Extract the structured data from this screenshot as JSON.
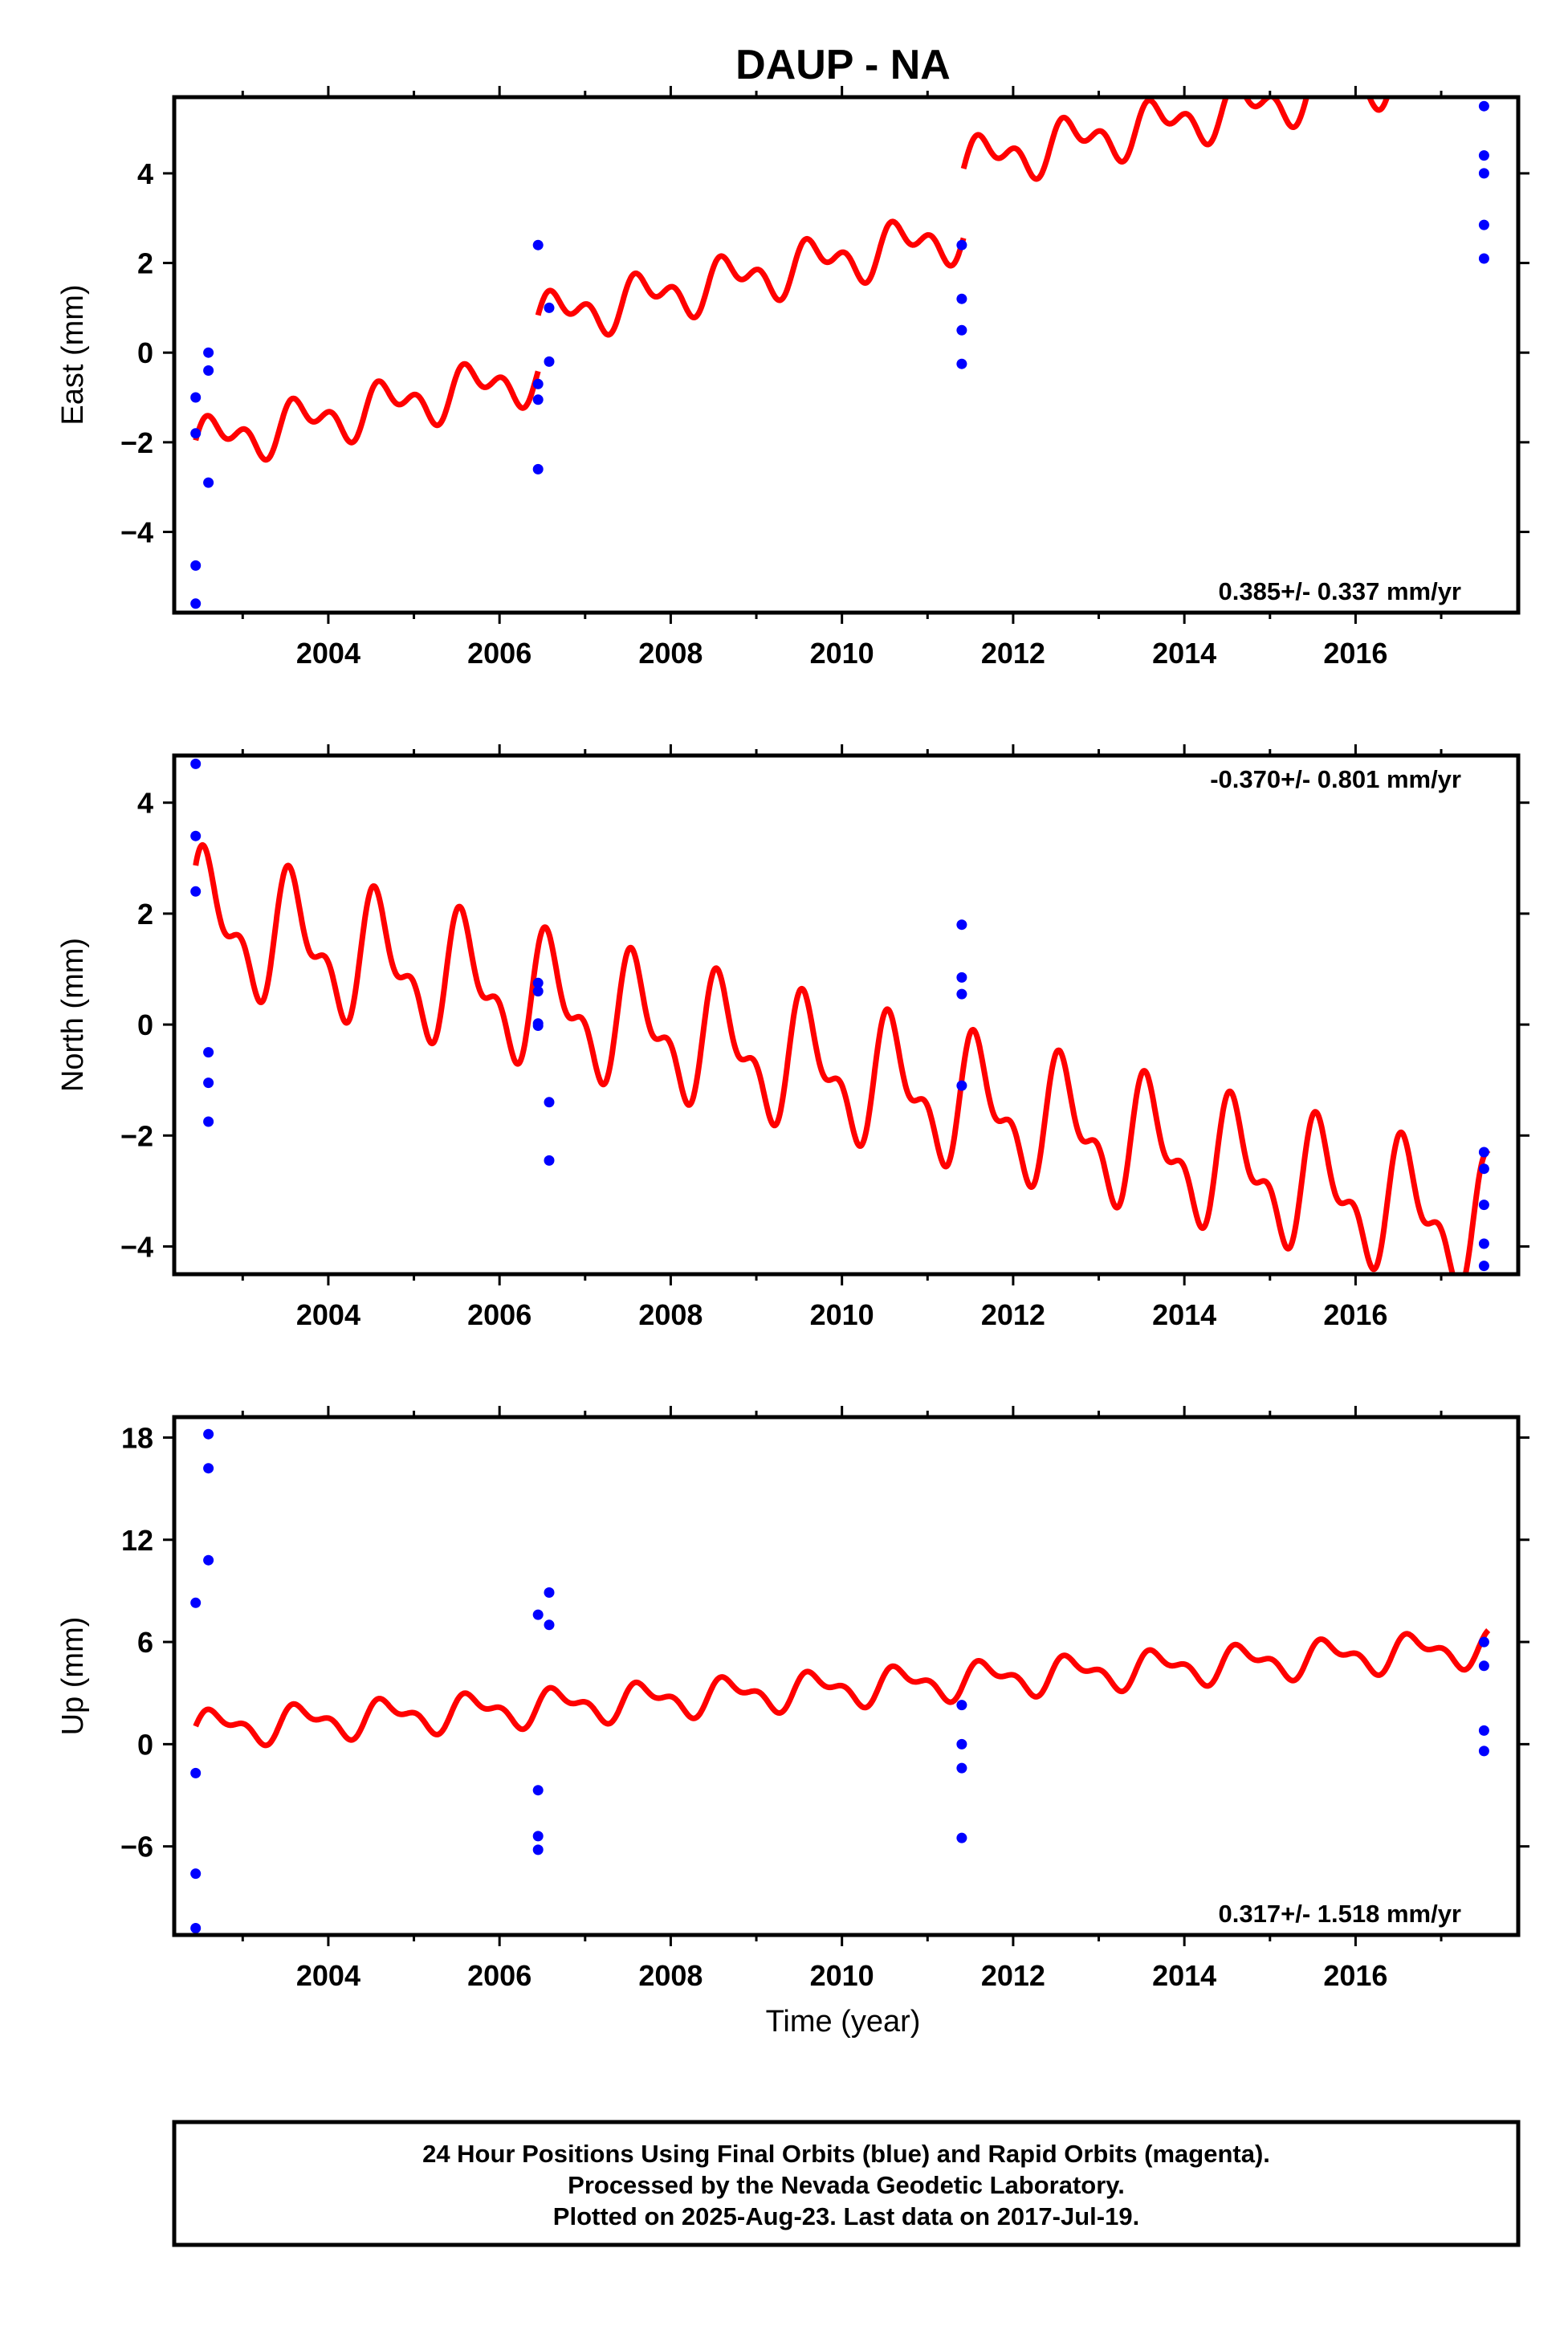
{
  "title": "DAUP - NA",
  "colors": {
    "fit": "#ff0000",
    "points": "#0000ff",
    "frame": "#000000"
  },
  "chart_data": [
    {
      "type": "scatter",
      "component": "east",
      "ylabel": "East (mm)",
      "xlim": [
        2002.2,
        2017.9
      ],
      "ylim": [
        -5.8,
        5.7
      ],
      "yticks": [
        -4,
        -2,
        0,
        2,
        4
      ],
      "xticks": [
        2004,
        2006,
        2008,
        2010,
        2012,
        2014,
        2016
      ],
      "grid": false,
      "rate_text": "0.385+/- 0.337 mm/yr",
      "rate_position": "bottom-right",
      "points": [
        [
          2002.45,
          -1.0
        ],
        [
          2002.45,
          -1.8
        ],
        [
          2002.45,
          -4.75
        ],
        [
          2002.45,
          -5.6
        ],
        [
          2002.6,
          0.0
        ],
        [
          2002.6,
          -0.4
        ],
        [
          2002.6,
          -2.9
        ],
        [
          2006.45,
          2.4
        ],
        [
          2006.45,
          -0.7
        ],
        [
          2006.45,
          -1.05
        ],
        [
          2006.45,
          -2.6
        ],
        [
          2006.58,
          1.0
        ],
        [
          2006.58,
          -0.2
        ],
        [
          2011.4,
          2.4
        ],
        [
          2011.4,
          1.2
        ],
        [
          2011.4,
          0.5
        ],
        [
          2011.4,
          -0.25
        ],
        [
          2017.5,
          5.5
        ],
        [
          2017.5,
          4.4
        ],
        [
          2017.5,
          4.0
        ],
        [
          2017.5,
          2.85
        ],
        [
          2017.5,
          2.1
        ]
      ],
      "fit_segments": [
        {
          "start": 2002.45,
          "end": 2006.45,
          "offset": -2.05
        },
        {
          "start": 2006.45,
          "end": 2011.42,
          "offset": -0.8
        },
        {
          "start": 2011.42,
          "end": 2017.55,
          "offset": 0.75
        }
      ],
      "fit_model": {
        "t0": 2002.45,
        "rate": 0.385,
        "annual_amp": 0.4,
        "annual_phase": 0.0,
        "semiannual_amp": 0.32,
        "semiannual_phase": 0.3
      }
    },
    {
      "type": "scatter",
      "component": "north",
      "ylabel": "North (mm)",
      "xlim": [
        2002.2,
        2017.9
      ],
      "ylim": [
        -4.5,
        4.85
      ],
      "yticks": [
        -4,
        -2,
        0,
        2,
        4
      ],
      "xticks": [
        2004,
        2006,
        2008,
        2010,
        2012,
        2014,
        2016
      ],
      "grid": false,
      "rate_text": "-0.370+/- 0.801 mm/yr",
      "rate_position": "top-right",
      "points": [
        [
          2002.45,
          4.7
        ],
        [
          2002.45,
          3.4
        ],
        [
          2002.45,
          2.4
        ],
        [
          2002.6,
          -0.5
        ],
        [
          2002.6,
          -1.05
        ],
        [
          2002.6,
          -1.75
        ],
        [
          2006.45,
          0.75
        ],
        [
          2006.45,
          0.6
        ],
        [
          2006.45,
          0.02
        ],
        [
          2006.45,
          -0.02
        ],
        [
          2006.58,
          -1.4
        ],
        [
          2006.58,
          -2.45
        ],
        [
          2011.4,
          1.8
        ],
        [
          2011.4,
          0.85
        ],
        [
          2011.4,
          0.55
        ],
        [
          2011.4,
          -1.1
        ],
        [
          2017.5,
          -2.3
        ],
        [
          2017.5,
          -2.6
        ],
        [
          2017.5,
          -3.25
        ],
        [
          2017.5,
          -3.95
        ],
        [
          2017.5,
          -4.35
        ]
      ],
      "fit_segments": [
        {
          "start": 2002.45,
          "end": 2017.55,
          "offset": 1.9
        }
      ],
      "fit_model": {
        "t0": 2002.45,
        "rate": -0.37,
        "annual_amp": 0.95,
        "annual_phase": 0.6,
        "semiannual_amp": 0.55,
        "semiannual_phase": 0.9
      }
    },
    {
      "type": "scatter",
      "component": "up",
      "ylabel": "Up (mm)",
      "xlim": [
        2002.2,
        2017.9
      ],
      "ylim": [
        -11.2,
        19.2
      ],
      "yticks": [
        -6,
        0,
        6,
        12,
        18
      ],
      "xticks": [
        2004,
        2006,
        2008,
        2010,
        2012,
        2014,
        2016
      ],
      "grid": false,
      "rate_text": "0.317+/- 1.518 mm/yr",
      "rate_position": "bottom-right",
      "points": [
        [
          2002.45,
          8.3
        ],
        [
          2002.45,
          -1.7
        ],
        [
          2002.45,
          -7.6
        ],
        [
          2002.45,
          -10.8
        ],
        [
          2002.6,
          18.2
        ],
        [
          2002.6,
          16.2
        ],
        [
          2002.6,
          10.8
        ],
        [
          2006.45,
          7.6
        ],
        [
          2006.45,
          -2.7
        ],
        [
          2006.45,
          -5.4
        ],
        [
          2006.45,
          -6.2
        ],
        [
          2006.58,
          8.9
        ],
        [
          2006.58,
          7.0
        ],
        [
          2011.4,
          2.3
        ],
        [
          2011.4,
          0.0
        ],
        [
          2011.4,
          -1.4
        ],
        [
          2011.4,
          -5.5
        ],
        [
          2017.5,
          6.0
        ],
        [
          2017.5,
          4.6
        ],
        [
          2017.5,
          0.8
        ],
        [
          2017.5,
          -0.4
        ]
      ],
      "fit_segments": [
        {
          "start": 2002.45,
          "end": 2017.55,
          "offset": 0.9
        }
      ],
      "fit_model": {
        "t0": 2002.45,
        "rate": 0.317,
        "annual_amp": 0.85,
        "annual_phase": 0.0,
        "semiannual_amp": 0.5,
        "semiannual_phase": 0.3
      }
    }
  ],
  "x_axis_label": "Time (year)",
  "footer": {
    "line1": "24 Hour Positions Using Final Orbits (blue) and Rapid Orbits (magenta).",
    "line2": "Processed by the Nevada Geodetic Laboratory.",
    "line3": "Plotted on 2025-Aug-23. Last data on 2017-Jul-19."
  }
}
